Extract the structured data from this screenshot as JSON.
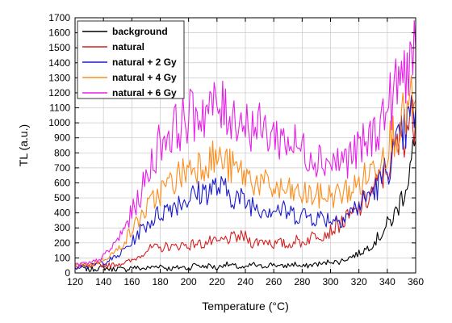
{
  "chart_data": {
    "type": "line",
    "xlabel": "Temperature (°C)",
    "ylabel": "TL (a.u.)",
    "xlim": [
      120,
      360
    ],
    "ylim": [
      0,
      1700
    ],
    "xticks": [
      120,
      140,
      160,
      180,
      200,
      220,
      240,
      260,
      280,
      300,
      320,
      340,
      360
    ],
    "yticks": [
      0,
      100,
      200,
      300,
      400,
      500,
      600,
      700,
      800,
      900,
      1000,
      1100,
      1200,
      1300,
      1400,
      1500,
      1600,
      1700
    ],
    "grid": true,
    "legend_position": "top-left",
    "x": [
      120,
      125,
      130,
      135,
      140,
      145,
      150,
      155,
      160,
      165,
      170,
      175,
      180,
      185,
      190,
      195,
      200,
      205,
      210,
      215,
      220,
      225,
      230,
      235,
      240,
      245,
      250,
      255,
      260,
      265,
      270,
      275,
      280,
      285,
      290,
      295,
      300,
      305,
      310,
      315,
      320,
      325,
      330,
      335,
      340,
      345,
      350,
      355,
      360
    ],
    "series": [
      {
        "name": "background",
        "color": "#000000",
        "values": [
          30,
          40,
          20,
          30,
          35,
          25,
          30,
          20,
          40,
          30,
          30,
          40,
          50,
          30,
          30,
          40,
          30,
          60,
          40,
          50,
          30,
          60,
          50,
          40,
          30,
          60,
          40,
          50,
          60,
          40,
          50,
          60,
          40,
          50,
          60,
          60,
          80,
          70,
          90,
          110,
          130,
          160,
          200,
          250,
          320,
          380,
          500,
          650,
          880
        ]
      },
      {
        "name": "natural",
        "color": "#d42020",
        "values": [
          40,
          50,
          40,
          50,
          55,
          50,
          60,
          70,
          80,
          110,
          150,
          170,
          160,
          180,
          170,
          190,
          180,
          200,
          190,
          210,
          200,
          220,
          230,
          240,
          240,
          200,
          210,
          220,
          190,
          200,
          180,
          220,
          200,
          230,
          260,
          260,
          280,
          320,
          350,
          380,
          430,
          480,
          550,
          620,
          700,
          800,
          900,
          1000,
          1050
        ]
      },
      {
        "name": "natural + 2 Gy",
        "color": "#1c1ccc",
        "values": [
          40,
          50,
          40,
          60,
          70,
          90,
          110,
          160,
          200,
          270,
          320,
          360,
          400,
          430,
          460,
          480,
          500,
          520,
          540,
          560,
          570,
          550,
          520,
          500,
          470,
          460,
          440,
          430,
          430,
          420,
          400,
          390,
          390,
          380,
          370,
          370,
          360,
          360,
          380,
          410,
          450,
          500,
          550,
          600,
          700,
          800,
          900,
          1000,
          1100
        ]
      },
      {
        "name": "natural + 4 Gy",
        "color": "#ff8c1a",
        "values": [
          45,
          55,
          50,
          70,
          90,
          120,
          150,
          220,
          280,
          360,
          420,
          480,
          540,
          580,
          620,
          660,
          700,
          720,
          740,
          760,
          760,
          740,
          700,
          680,
          650,
          620,
          600,
          580,
          560,
          550,
          540,
          530,
          520,
          520,
          510,
          510,
          520,
          520,
          540,
          560,
          590,
          640,
          700,
          780,
          860,
          940,
          1000,
          1100,
          1150
        ]
      },
      {
        "name": "natural + 6 Gy",
        "color": "#e81ee8",
        "values": [
          50,
          60,
          60,
          80,
          110,
          160,
          220,
          300,
          400,
          500,
          620,
          760,
          880,
          920,
          960,
          1000,
          1040,
          1060,
          1080,
          1100,
          1100,
          1080,
          1060,
          1040,
          1000,
          980,
          960,
          940,
          920,
          900,
          880,
          850,
          820,
          800,
          780,
          760,
          740,
          740,
          760,
          780,
          820,
          860,
          920,
          1000,
          1100,
          1200,
          1300,
          1400,
          1500
        ]
      }
    ]
  }
}
